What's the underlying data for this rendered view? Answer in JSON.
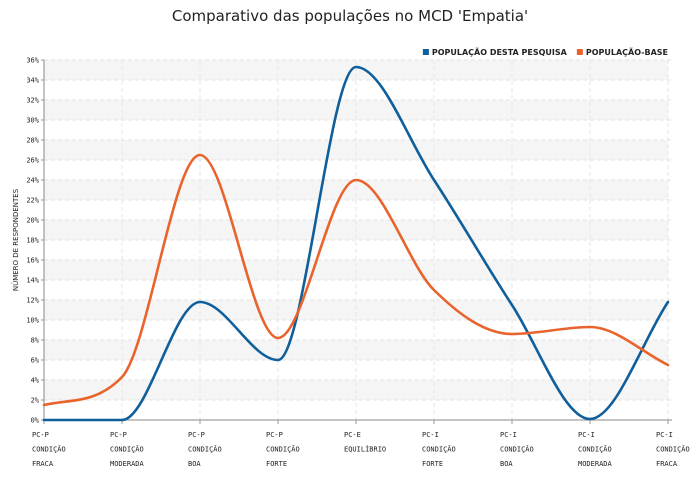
{
  "chart_data": {
    "type": "line",
    "title": "Comparativo das populações no MCD 'Empatia'",
    "ylabel": "NÚMERO DE RESPONDENTES",
    "xlabel": "",
    "ylim": [
      0,
      36
    ],
    "y_ticks": [
      "0%",
      "2%",
      "4%",
      "6%",
      "8%",
      "10%",
      "12%",
      "14%",
      "16%",
      "18%",
      "20%",
      "22%",
      "24%",
      "26%",
      "28%",
      "30%",
      "32%",
      "34%",
      "36%"
    ],
    "categories": [
      [
        "PC-P",
        "CONDIÇÃO",
        "FRACA"
      ],
      [
        "PC-P",
        "CONDIÇÃO",
        "MODERADA"
      ],
      [
        "PC-P",
        "CONDIÇÃO",
        "BOA"
      ],
      [
        "PC-P",
        "CONDIÇÃO",
        "FORTE"
      ],
      [
        "PC-E",
        "EQUILÍBRIO"
      ],
      [
        "PC-I",
        "CONDIÇÃO",
        "FORTE"
      ],
      [
        "PC-I",
        "CONDIÇÃO",
        "BOA"
      ],
      [
        "PC-I",
        "CONDIÇÃO",
        "MODERADA"
      ],
      [
        "PC-I",
        "CONDIÇÃO",
        "FRACA"
      ]
    ],
    "series": [
      {
        "name": "POPULAÇÃO DESTA PESQUISA",
        "color": "#0f5f9c",
        "values": [
          0.0,
          0.0,
          11.8,
          6.0,
          35.3,
          24.0,
          11.5,
          0.1,
          11.8
        ]
      },
      {
        "name": "POPULAÇÃO-BASE",
        "color": "#e8642c",
        "values": [
          1.5,
          4.3,
          26.5,
          8.2,
          24.0,
          13.0,
          8.6,
          9.3,
          5.5
        ]
      }
    ],
    "grid": true,
    "legend_position": "top-right"
  }
}
